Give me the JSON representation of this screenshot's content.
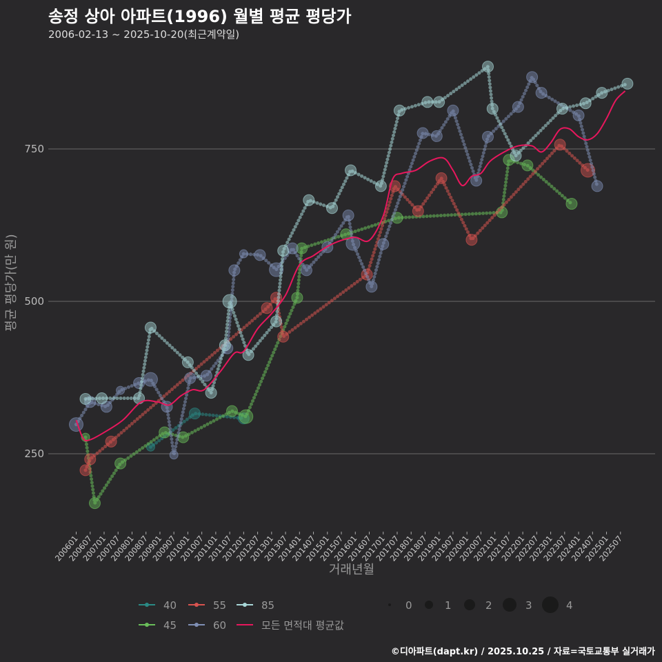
{
  "title": "송정 상아 아파트(1996) 월별 평균 평당가",
  "subtitle": "2006-02-13 ~ 2025-10-20(최근계약일)",
  "footer": "©디아파트(dapt.kr) / 2025.10.25 / 자료=국토교통부 실거래가",
  "chart_data": {
    "type": "line",
    "title": "송정 상아 아파트(1996) 월별 평균 평당가",
    "xlabel": "거래년월",
    "ylabel": "평균 평당가(만 원)",
    "yticks": [
      250,
      500,
      750
    ],
    "ylim": [
      130,
      920
    ],
    "xticks": [
      "200601",
      "200607",
      "200701",
      "200707",
      "200801",
      "200807",
      "200901",
      "200907",
      "201001",
      "201007",
      "201101",
      "201107",
      "201201",
      "201207",
      "201301",
      "201307",
      "201401",
      "201407",
      "201501",
      "201507",
      "201601",
      "201607",
      "201701",
      "201707",
      "201801",
      "201807",
      "201901",
      "201907",
      "202001",
      "202007",
      "202101",
      "202107",
      "202201",
      "202207",
      "202301",
      "202307",
      "202401",
      "202407",
      "202501",
      "202507"
    ],
    "grid": true,
    "size_legend": {
      "title": "",
      "values": [
        0,
        1,
        2,
        3,
        4
      ]
    },
    "legend_position": "bottom",
    "series": [
      {
        "name": "40",
        "color": "#2a8a85",
        "points": [
          [
            "2008-09",
            261,
            1
          ],
          [
            "2010-04",
            316,
            2
          ],
          [
            "2012-01",
            308,
            2
          ]
        ]
      },
      {
        "name": "45",
        "color": "#6abf5a",
        "points": [
          [
            "2006-05",
            277,
            1
          ],
          [
            "2006-09",
            169,
            2
          ],
          [
            "2007-08",
            234,
            2
          ],
          [
            "2009-03",
            285,
            2
          ],
          [
            "2009-11",
            277,
            2
          ],
          [
            "2011-08",
            320,
            2
          ],
          [
            "2012-02",
            311,
            3
          ],
          [
            "2013-12",
            506,
            2
          ],
          [
            "2014-02",
            587,
            2
          ],
          [
            "2015-09",
            610,
            2
          ],
          [
            "2017-07",
            637,
            2
          ],
          [
            "2021-04",
            646,
            2
          ],
          [
            "2021-07",
            732,
            2
          ],
          [
            "2022-03",
            723,
            2
          ],
          [
            "2023-10",
            660,
            2
          ]
        ]
      },
      {
        "name": "55",
        "color": "#d9534f",
        "points": [
          [
            "2006-05",
            223,
            2
          ],
          [
            "2006-07",
            241,
            2
          ],
          [
            "2007-04",
            270,
            2
          ],
          [
            "2012-11",
            489,
            2
          ],
          [
            "2013-03",
            506,
            2
          ],
          [
            "2013-06",
            442,
            2
          ],
          [
            "2016-06",
            544,
            2
          ],
          [
            "2017-06",
            689,
            2
          ],
          [
            "2018-04",
            648,
            2
          ],
          [
            "2019-02",
            702,
            2
          ],
          [
            "2020-03",
            601,
            2
          ],
          [
            "2023-05",
            757,
            2
          ],
          [
            "2024-05",
            715,
            3
          ]
        ]
      },
      {
        "name": "60",
        "color": "#7f8fb5",
        "points": [
          [
            "2006-01",
            298,
            3
          ],
          [
            "2006-07",
            335,
            2
          ],
          [
            "2007-02",
            327,
            2
          ],
          [
            "2007-08",
            354,
            1
          ],
          [
            "2008-04",
            366,
            2
          ],
          [
            "2008-09",
            372,
            3
          ],
          [
            "2009-04",
            327,
            2
          ],
          [
            "2009-07",
            248,
            1
          ],
          [
            "2010-02",
            374,
            2
          ],
          [
            "2010-09",
            378,
            2
          ],
          [
            "2011-06",
            423,
            2
          ],
          [
            "2011-09",
            551,
            2
          ],
          [
            "2012-01",
            578,
            1
          ],
          [
            "2012-08",
            576,
            2
          ],
          [
            "2013-03",
            552,
            3
          ],
          [
            "2013-10",
            587,
            2
          ],
          [
            "2014-04",
            551,
            2
          ],
          [
            "2015-01",
            589,
            2
          ],
          [
            "2015-10",
            641,
            2
          ],
          [
            "2015-12",
            595,
            3
          ],
          [
            "2016-08",
            524,
            2
          ],
          [
            "2017-01",
            594,
            2
          ],
          [
            "2018-06",
            776,
            2
          ],
          [
            "2018-12",
            771,
            2
          ],
          [
            "2019-07",
            813,
            2
          ],
          [
            "2020-05",
            698,
            2
          ],
          [
            "2020-10",
            770,
            2
          ],
          [
            "2021-11",
            819,
            2
          ],
          [
            "2022-05",
            868,
            2
          ],
          [
            "2022-09",
            842,
            2
          ],
          [
            "2024-01",
            805,
            2
          ],
          [
            "2024-09",
            689,
            2
          ]
        ]
      },
      {
        "name": "85",
        "color": "#a8d8d8",
        "points": [
          [
            "2006-05",
            340,
            2
          ],
          [
            "2006-12",
            341,
            2
          ],
          [
            "2008-04",
            341,
            2
          ],
          [
            "2008-09",
            457,
            2
          ],
          [
            "2010-01",
            400,
            2
          ],
          [
            "2010-11",
            350,
            2
          ],
          [
            "2011-05",
            428,
            2
          ],
          [
            "2011-07",
            500,
            3
          ],
          [
            "2012-03",
            412,
            2
          ],
          [
            "2013-03",
            467,
            2
          ],
          [
            "2013-06",
            583,
            2
          ],
          [
            "2014-05",
            666,
            2
          ],
          [
            "2015-03",
            653,
            2
          ],
          [
            "2015-11",
            715,
            2
          ],
          [
            "2016-12",
            689,
            2
          ],
          [
            "2017-08",
            813,
            2
          ],
          [
            "2018-08",
            827,
            2
          ],
          [
            "2019-01",
            827,
            2
          ],
          [
            "2020-10",
            885,
            2
          ],
          [
            "2020-12",
            816,
            2
          ],
          [
            "2021-10",
            739,
            2
          ],
          [
            "2023-06",
            816,
            2
          ],
          [
            "2024-04",
            825,
            2
          ],
          [
            "2024-11",
            842,
            2
          ],
          [
            "2025-10",
            857,
            2
          ]
        ]
      },
      {
        "name": "모든 면적대 평균값",
        "color": "#e8175d",
        "smooth": true,
        "points": [
          [
            "2006-01",
            305
          ],
          [
            "2006-04",
            275
          ],
          [
            "2006-07",
            273
          ],
          [
            "2007-01",
            285
          ],
          [
            "2007-09",
            305
          ],
          [
            "2008-05",
            335
          ],
          [
            "2008-12",
            335
          ],
          [
            "2009-05",
            330
          ],
          [
            "2009-10",
            345
          ],
          [
            "2010-03",
            355
          ],
          [
            "2010-08",
            355
          ],
          [
            "2011-03",
            385
          ],
          [
            "2011-09",
            415
          ],
          [
            "2012-01",
            418
          ],
          [
            "2012-07",
            455
          ],
          [
            "2013-01",
            480
          ],
          [
            "2013-07",
            510
          ],
          [
            "2014-01",
            560
          ],
          [
            "2014-07",
            575
          ],
          [
            "2015-01",
            590
          ],
          [
            "2015-07",
            600
          ],
          [
            "2016-01",
            605
          ],
          [
            "2016-07",
            600
          ],
          [
            "2017-01",
            640
          ],
          [
            "2017-05",
            700
          ],
          [
            "2017-09",
            710
          ],
          [
            "2018-03",
            715
          ],
          [
            "2018-09",
            730
          ],
          [
            "2019-03",
            735
          ],
          [
            "2019-07",
            715
          ],
          [
            "2019-11",
            690
          ],
          [
            "2020-03",
            705
          ],
          [
            "2020-07",
            710
          ],
          [
            "2020-11",
            730
          ],
          [
            "2021-05",
            745
          ],
          [
            "2021-11",
            755
          ],
          [
            "2022-05",
            755
          ],
          [
            "2022-09",
            745
          ],
          [
            "2023-01",
            760
          ],
          [
            "2023-05",
            782
          ],
          [
            "2023-09",
            783
          ],
          [
            "2024-01",
            770
          ],
          [
            "2024-05",
            765
          ],
          [
            "2024-09",
            775
          ],
          [
            "2025-01",
            800
          ],
          [
            "2025-05",
            830
          ],
          [
            "2025-09",
            845
          ]
        ]
      }
    ]
  }
}
